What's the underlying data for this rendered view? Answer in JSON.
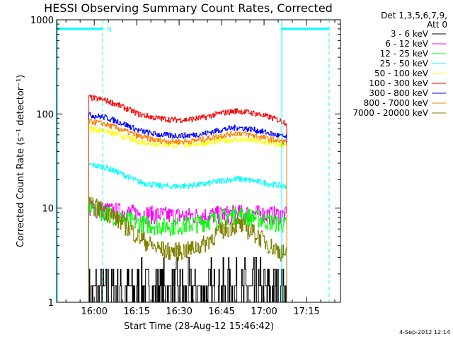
{
  "chart_data": {
    "type": "line",
    "title": "HESSI Observing Summary Count Rates, Corrected",
    "xlabel": "Start Time (28-Aug-12 15:46:42)",
    "ylabel": "Corrected Count Rate (s⁻¹ detector⁻¹)",
    "yscale": "log",
    "ylim": [
      1,
      1000
    ],
    "xlim": [
      "15:46:42",
      "17:27:00"
    ],
    "x_ticks": [
      "16:00",
      "16:15",
      "16:30",
      "16:45",
      "17:00",
      "17:15"
    ],
    "y_ticks": [
      "1",
      "10",
      "100",
      "1000"
    ],
    "grid": false,
    "legend_position": "top-right",
    "legend_header": [
      "Det 1,3,5,6,7,9,",
      "Att 0"
    ],
    "series": [
      {
        "name": "3 - 6 keV",
        "color": "#000000",
        "start": "15:58",
        "end": "17:08",
        "values": [
          1.4,
          1.5,
          1.4,
          1.5,
          1.6,
          1.6,
          1.7,
          1.8,
          1.8,
          1.7,
          1.7,
          1.6,
          1.6
        ]
      },
      {
        "name": "6 - 12 keV",
        "color": "#ff00ff",
        "start": "15:58",
        "end": "17:08",
        "values": [
          10,
          9.6,
          9.2,
          8.8,
          8.6,
          8.4,
          8.3,
          8.4,
          8.6,
          8.9,
          8.8,
          8.6,
          8.4
        ]
      },
      {
        "name": "12 - 25 keV",
        "color": "#00ff00",
        "start": "15:58",
        "end": "17:08",
        "values": [
          10.5,
          9,
          7.8,
          7,
          6.6,
          6.5,
          6.7,
          7.2,
          8,
          8.6,
          8,
          7.2,
          6.6
        ]
      },
      {
        "name": "25 - 50 keV",
        "color": "#00ffff",
        "start": "15:58",
        "end": "17:08",
        "values": [
          29,
          27,
          23,
          19,
          17.5,
          17,
          17.3,
          18,
          19.5,
          20.5,
          19.5,
          18,
          17
        ]
      },
      {
        "name": "50 - 100 keV",
        "color": "#ffff00",
        "start": "15:58",
        "end": "17:08",
        "values": [
          70,
          66,
          58,
          51,
          48,
          47,
          47.5,
          49,
          52,
          54,
          52,
          49,
          46
        ]
      },
      {
        "name": "100 - 300 keV",
        "color": "#ff0000",
        "start": "15:58",
        "end": "17:08",
        "values": [
          150,
          140,
          120,
          100,
          91,
          87,
          87,
          92,
          102,
          108,
          102,
          92,
          80
        ]
      },
      {
        "name": "300 - 800 keV",
        "color": "#0000ff",
        "start": "15:58",
        "end": "17:08",
        "values": [
          98,
          92,
          80,
          67,
          61,
          59,
          59,
          62,
          68,
          72,
          68,
          62,
          56
        ]
      },
      {
        "name": "800 - 7000 keV",
        "color": "#ff7f00",
        "start": "15:58",
        "end": "17:08",
        "values": [
          84,
          78,
          68,
          58,
          53,
          51,
          51,
          54,
          59,
          63,
          59,
          54,
          50
        ]
      },
      {
        "name": "7000 - 20000 keV",
        "color": "#808000",
        "start": "15:58",
        "end": "17:08",
        "values": [
          11,
          9.5,
          7,
          5,
          3.8,
          3.5,
          3.6,
          4.2,
          5.8,
          6.8,
          5.5,
          4,
          3.2
        ]
      }
    ],
    "attenuator_state_line": {
      "color": "#00ffff",
      "label": "N",
      "segments": [
        [
          "15:46:42",
          "16:03"
        ],
        [
          "17:06",
          "17:23"
        ]
      ],
      "dashed_markers": [
        "16:03",
        "17:23"
      ],
      "solid_markers": [
        "15:46:42",
        "17:06"
      ]
    },
    "timestamp": "4-Sep-2012 12:14"
  }
}
